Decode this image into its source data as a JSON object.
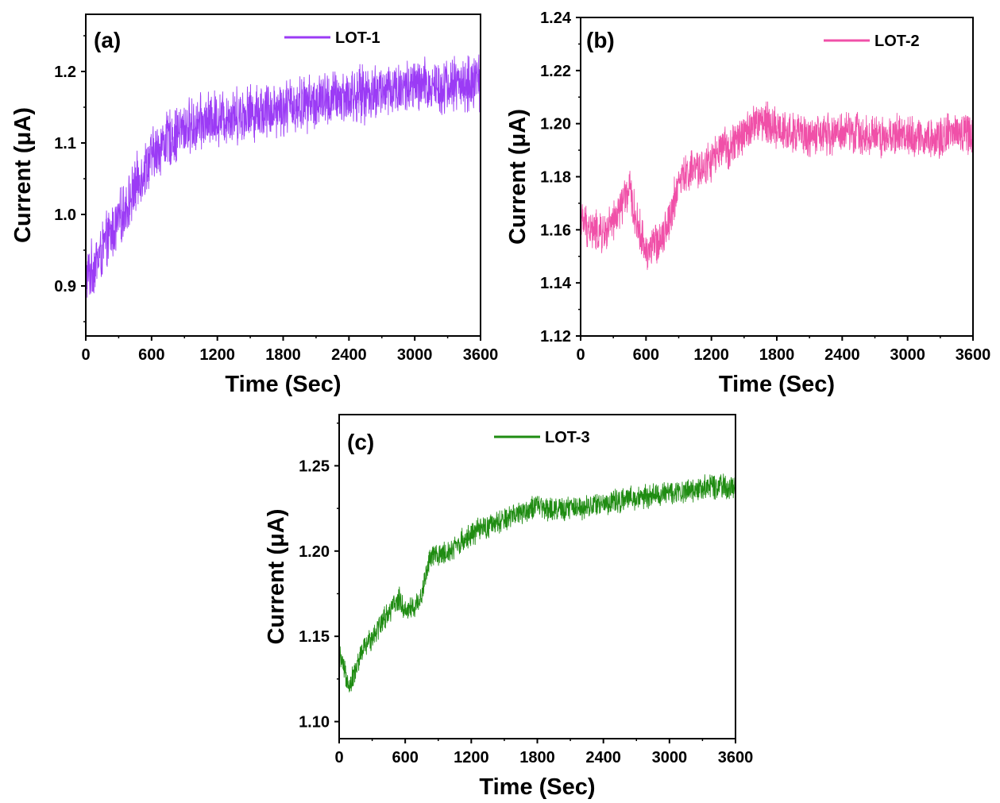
{
  "chart_data": [
    {
      "type": "line",
      "panel_label": "(a)",
      "xlabel": "Time (Sec)",
      "ylabel": "Current (μA)",
      "xlim": [
        0,
        3600
      ],
      "ylim": [
        0.83,
        1.28
      ],
      "xticks": [
        0,
        600,
        1200,
        1800,
        2400,
        3000,
        3600
      ],
      "yticks": [
        0.9,
        1.0,
        1.1,
        1.2
      ],
      "ytick_labels": [
        "0.9",
        "1.0",
        "1.1",
        "1.2"
      ],
      "legend_position": "top-right",
      "noise_amplitude": 0.045,
      "series": [
        {
          "name": "LOT-1",
          "color": "#9b3bf5",
          "x": [
            0,
            60,
            120,
            200,
            300,
            400,
            500,
            600,
            700,
            800,
            900,
            1000,
            1200,
            1400,
            1600,
            1800,
            2000,
            2200,
            2400,
            2600,
            2800,
            3000,
            3200,
            3400,
            3600
          ],
          "y": [
            0.91,
            0.925,
            0.94,
            0.965,
            0.99,
            1.02,
            1.055,
            1.08,
            1.1,
            1.11,
            1.12,
            1.125,
            1.135,
            1.14,
            1.145,
            1.15,
            1.155,
            1.16,
            1.165,
            1.17,
            1.175,
            1.178,
            1.18,
            1.182,
            1.185
          ]
        }
      ]
    },
    {
      "type": "line",
      "panel_label": "(b)",
      "xlabel": "Time (Sec)",
      "ylabel": "Current (μA)",
      "xlim": [
        0,
        3600
      ],
      "ylim": [
        1.12,
        1.24
      ],
      "xticks": [
        0,
        600,
        1200,
        1800,
        2400,
        3000,
        3600
      ],
      "yticks": [
        1.12,
        1.14,
        1.16,
        1.18,
        1.2,
        1.22,
        1.24
      ],
      "ytick_labels": [
        "1.12",
        "1.14",
        "1.16",
        "1.18",
        "1.20",
        "1.22",
        "1.24"
      ],
      "legend_position": "top-right",
      "noise_amplitude": 0.009,
      "series": [
        {
          "name": "LOT-2",
          "color": "#f050a8",
          "x": [
            0,
            100,
            200,
            300,
            400,
            450,
            500,
            600,
            700,
            800,
            900,
            1000,
            1100,
            1200,
            1300,
            1400,
            1500,
            1600,
            1700,
            1800,
            2000,
            2200,
            2400,
            2600,
            2800,
            3000,
            3200,
            3400,
            3600
          ],
          "y": [
            1.163,
            1.16,
            1.158,
            1.162,
            1.172,
            1.175,
            1.165,
            1.152,
            1.155,
            1.162,
            1.178,
            1.182,
            1.183,
            1.186,
            1.19,
            1.192,
            1.196,
            1.2,
            1.201,
            1.198,
            1.196,
            1.195,
            1.197,
            1.196,
            1.195,
            1.196,
            1.194,
            1.197,
            1.196
          ]
        }
      ]
    },
    {
      "type": "line",
      "panel_label": "(c)",
      "xlabel": "Time (Sec)",
      "ylabel": "Current (μA)",
      "xlim": [
        0,
        3600
      ],
      "ylim": [
        1.09,
        1.28
      ],
      "xticks": [
        0,
        600,
        1200,
        1800,
        2400,
        3000,
        3600
      ],
      "yticks": [
        1.1,
        1.15,
        1.2,
        1.25
      ],
      "ytick_labels": [
        "1.10",
        "1.15",
        "1.20",
        "1.25"
      ],
      "legend_position": "top-center",
      "noise_amplitude": 0.008,
      "series": [
        {
          "name": "LOT-3",
          "color": "#1f8c12",
          "x": [
            0,
            50,
            100,
            150,
            200,
            300,
            400,
            500,
            550,
            600,
            700,
            750,
            800,
            850,
            900,
            1000,
            1100,
            1200,
            1300,
            1400,
            1500,
            1600,
            1700,
            1800,
            2000,
            2200,
            2400,
            2600,
            2800,
            3000,
            3200,
            3400,
            3600
          ],
          "y": [
            1.14,
            1.128,
            1.122,
            1.13,
            1.14,
            1.15,
            1.16,
            1.168,
            1.172,
            1.165,
            1.168,
            1.175,
            1.19,
            1.198,
            1.197,
            1.2,
            1.205,
            1.21,
            1.213,
            1.215,
            1.218,
            1.222,
            1.224,
            1.226,
            1.224,
            1.226,
            1.228,
            1.23,
            1.232,
            1.234,
            1.236,
            1.238,
            1.237
          ]
        }
      ]
    }
  ]
}
